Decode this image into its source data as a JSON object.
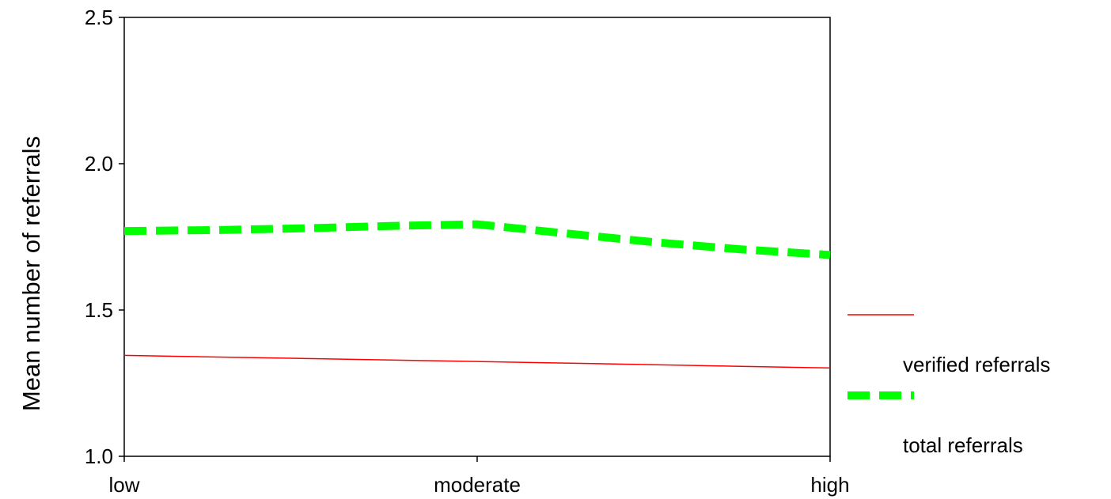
{
  "chart_data": {
    "type": "line",
    "categories": [
      "low",
      "moderate",
      "high"
    ],
    "x_dense": [
      0,
      0.25,
      0.5,
      0.75,
      1.0,
      1.25,
      1.5,
      1.75,
      2.0
    ],
    "series": [
      {
        "name": "verified referrals",
        "color": "#ff0000",
        "style": "solid",
        "x": [
          0,
          1,
          2
        ],
        "values": [
          1.345,
          1.324,
          1.302
        ]
      },
      {
        "name": "total referrals",
        "color": "#00ff00",
        "style": "dashed",
        "x": [
          0,
          0.25,
          0.5,
          0.75,
          1.0,
          1.25,
          1.5,
          1.75,
          2.0
        ],
        "values": [
          1.77,
          1.773,
          1.779,
          1.787,
          1.793,
          1.762,
          1.732,
          1.707,
          1.688
        ]
      }
    ],
    "title": "",
    "xlabel": "",
    "ylabel": "Mean number of referrals",
    "ylim": [
      1.0,
      2.5
    ],
    "yticks": [
      "1.0",
      "1.5",
      "2.0",
      "2.5"
    ],
    "grid": false,
    "legend_position": "right"
  }
}
